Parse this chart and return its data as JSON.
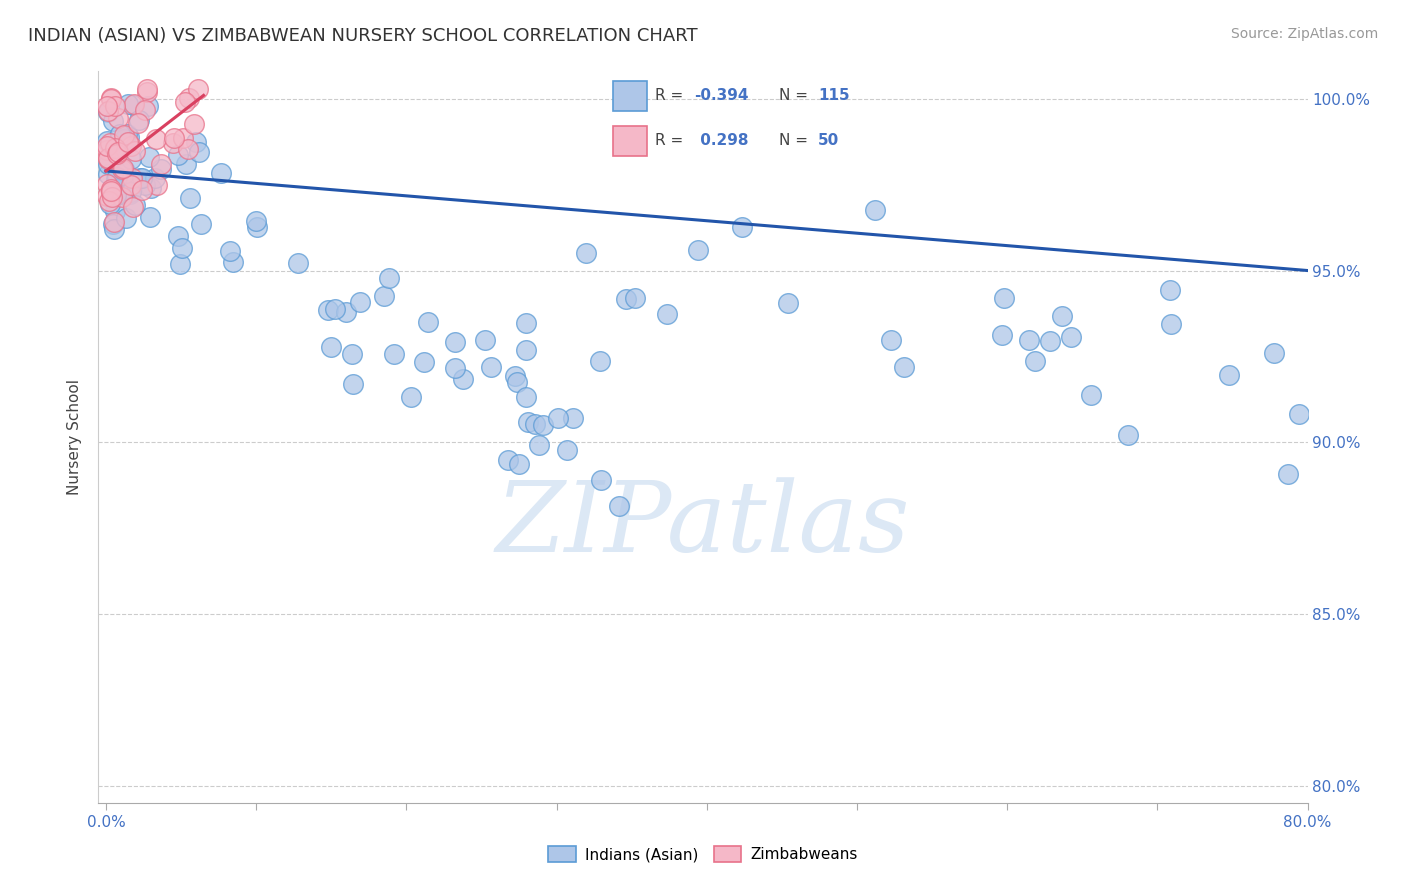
{
  "title": "INDIAN (ASIAN) VS ZIMBABWEAN NURSERY SCHOOL CORRELATION CHART",
  "source": "Source: ZipAtlas.com",
  "ylabel": "Nursery School",
  "xlim": [
    -0.005,
    0.8
  ],
  "ylim": [
    0.795,
    1.008
  ],
  "xtick_positions": [
    0.0,
    0.1,
    0.2,
    0.3,
    0.4,
    0.5,
    0.6,
    0.7,
    0.8
  ],
  "xtick_labels": [
    "0.0%",
    "",
    "",
    "",
    "",
    "",
    "",
    "",
    "80.0%"
  ],
  "ytick_positions": [
    0.8,
    0.85,
    0.9,
    0.95,
    1.0
  ],
  "ytick_labels": [
    "80.0%",
    "85.0%",
    "90.0%",
    "95.0%",
    "100.0%"
  ],
  "blue_R": -0.394,
  "blue_N": 115,
  "pink_R": 0.298,
  "pink_N": 50,
  "blue_color": "#aec6e8",
  "pink_color": "#f5b8c8",
  "blue_edge_color": "#5b9bd5",
  "pink_edge_color": "#e8728a",
  "blue_line_color": "#2255aa",
  "pink_line_color": "#d94060",
  "legend_blue_label": "Indians (Asian)",
  "legend_pink_label": "Zimbabweans",
  "blue_trend_x": [
    0.0,
    0.8
  ],
  "blue_trend_y": [
    0.979,
    0.95
  ],
  "pink_trend_x": [
    0.0,
    0.065
  ],
  "pink_trend_y": [
    0.979,
    1.001
  ],
  "watermark_text": "ZIPatlas",
  "watermark_color": "#dce8f5"
}
